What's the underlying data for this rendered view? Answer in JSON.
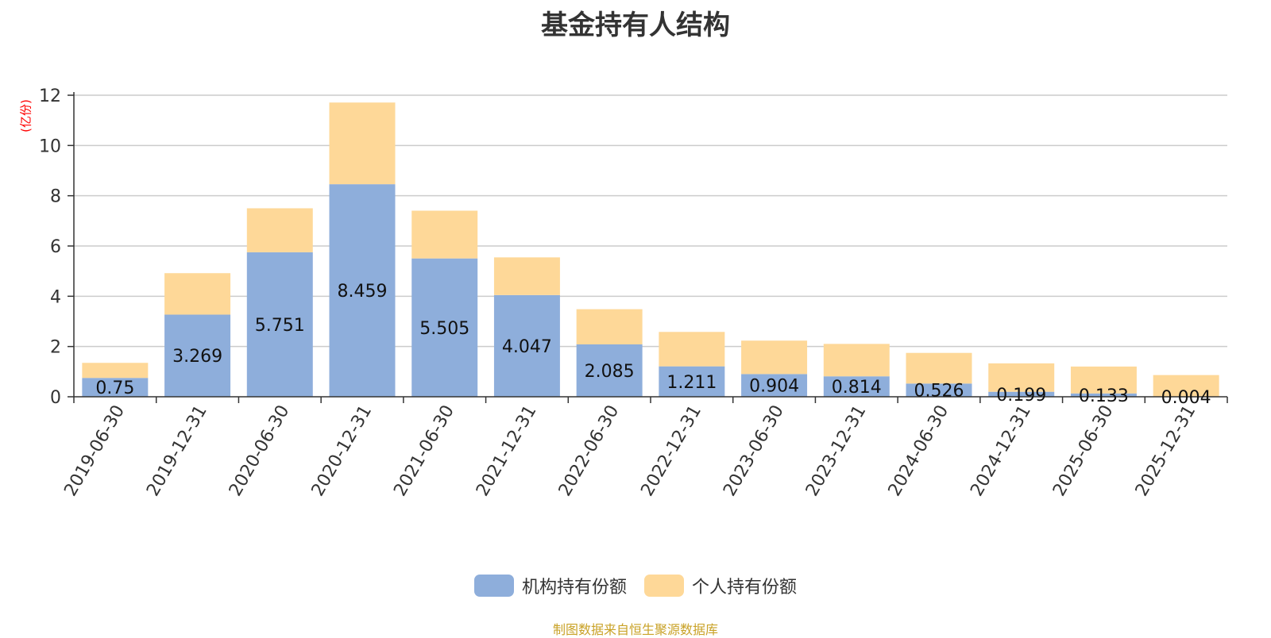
{
  "chart_data": {
    "type": "bar",
    "stacked": true,
    "title": "基金持有人结构",
    "ylabel": "(亿份)",
    "ylim": [
      0,
      12
    ],
    "yticks": [
      0,
      2,
      4,
      6,
      8,
      10,
      12
    ],
    "categories": [
      "2019-06-30",
      "2019-12-31",
      "2020-06-30",
      "2020-12-31",
      "2021-06-30",
      "2021-12-31",
      "2022-06-30",
      "2022-12-31",
      "2023-06-30",
      "2023-12-31",
      "2024-06-30",
      "2024-12-31",
      "2025-06-30",
      "2025-12-31"
    ],
    "series": [
      {
        "name": "机构持有份额",
        "color": "#8eaedb",
        "values": [
          0.75,
          3.269,
          5.751,
          8.459,
          5.505,
          4.047,
          2.085,
          1.211,
          0.904,
          0.814,
          0.526,
          0.199,
          0.133,
          0.004
        ],
        "labels": [
          "0.75",
          "3.269",
          "5.751",
          "8.459",
          "5.505",
          "4.047",
          "2.085",
          "1.211",
          "0.904",
          "0.814",
          "0.526",
          "0.199",
          "0.133",
          "0.004"
        ]
      },
      {
        "name": "个人持有份额",
        "color": "#fed898",
        "values": [
          0.6,
          1.65,
          1.75,
          3.25,
          1.9,
          1.5,
          1.4,
          1.37,
          1.33,
          1.29,
          1.22,
          1.13,
          1.07,
          0.86
        ]
      }
    ],
    "legend_position": "bottom-center",
    "grid": true
  },
  "source": "制图数据来自恒生聚源数据库"
}
